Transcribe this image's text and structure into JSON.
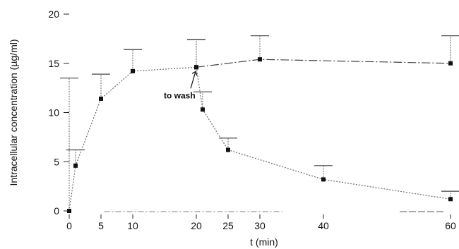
{
  "chart_data": {
    "type": "line",
    "title": "",
    "xlabel": "t (min)",
    "ylabel": "Intracellular concentration (µg/ml)",
    "xlim": [
      0,
      60
    ],
    "ylim": [
      0,
      20
    ],
    "x_ticks": [
      0,
      5,
      10,
      20,
      25,
      30,
      40,
      60
    ],
    "y_ticks": [
      0,
      5,
      10,
      15,
      20
    ],
    "grid": false,
    "legend": "none",
    "series": [
      {
        "style": "dotted",
        "points": [
          {
            "x": 0,
            "y": 0
          },
          {
            "x": 1,
            "y": 4.6
          },
          {
            "x": 5,
            "y": 11.4
          },
          {
            "x": 10,
            "y": 14.2
          },
          {
            "x": 20,
            "y": 14.6
          }
        ],
        "error_plus": [
          13.5,
          1.6,
          2.5,
          2.2,
          2.8
        ]
      },
      {
        "style": "dash-dot",
        "points": [
          {
            "x": 20,
            "y": 14.6
          },
          {
            "x": 30,
            "y": 15.4
          },
          {
            "x": 60,
            "y": 15.0
          }
        ],
        "error_plus": [
          2.8,
          2.4,
          2.8
        ]
      },
      {
        "style": "dotted",
        "points": [
          {
            "x": 20,
            "y": 14.6
          },
          {
            "x": 21,
            "y": 10.3
          },
          {
            "x": 25,
            "y": 6.2
          },
          {
            "x": 40,
            "y": 3.2
          },
          {
            "x": 60,
            "y": 1.2
          }
        ],
        "error_plus": [
          2.8,
          1.8,
          1.2,
          1.4,
          0.8
        ]
      }
    ],
    "annotations": [
      {
        "text": "to wash",
        "x": 20,
        "y": 14.6
      }
    ]
  }
}
